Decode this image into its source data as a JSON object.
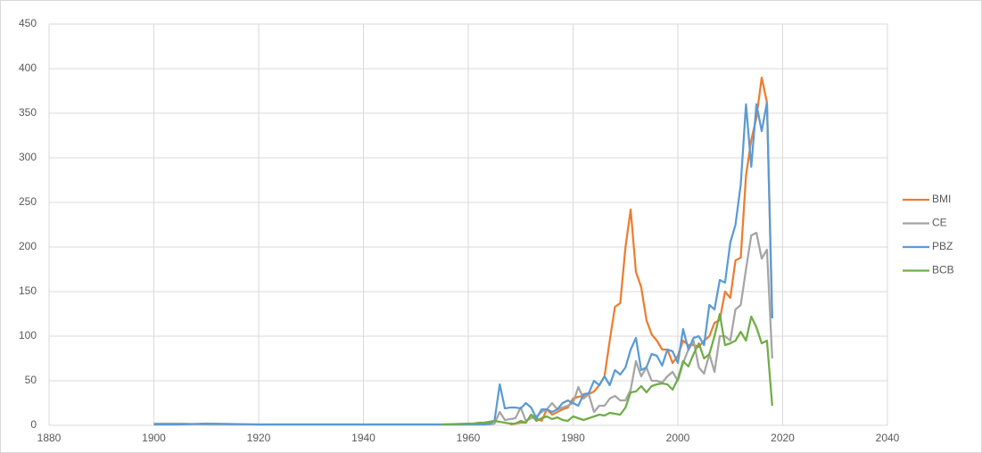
{
  "chart_data": {
    "type": "line",
    "x": [
      1900,
      1905,
      1910,
      1920,
      1930,
      1940,
      1950,
      1955,
      1960,
      1961,
      1962,
      1963,
      1964,
      1965,
      1966,
      1967,
      1968,
      1969,
      1970,
      1971,
      1972,
      1973,
      1974,
      1975,
      1976,
      1977,
      1978,
      1979,
      1980,
      1981,
      1982,
      1983,
      1984,
      1985,
      1986,
      1987,
      1988,
      1989,
      1990,
      1991,
      1992,
      1993,
      1994,
      1995,
      1996,
      1997,
      1998,
      1999,
      2000,
      2001,
      2002,
      2003,
      2004,
      2005,
      2006,
      2007,
      2008,
      2009,
      2010,
      2011,
      2012,
      2013,
      2014,
      2015,
      2016,
      2017,
      2018
    ],
    "series": [
      {
        "name": "BMI",
        "color": "#ed7d31",
        "values": [
          null,
          null,
          null,
          null,
          null,
          null,
          null,
          null,
          null,
          null,
          null,
          null,
          null,
          null,
          null,
          null,
          1,
          2,
          3,
          3,
          12,
          8,
          5,
          18,
          12,
          15,
          18,
          20,
          30,
          32,
          33,
          35,
          38,
          45,
          55,
          95,
          133,
          137,
          200,
          242,
          172,
          155,
          118,
          102,
          95,
          85,
          85,
          70,
          78,
          95,
          90,
          90,
          88,
          95,
          100,
          115,
          118,
          150,
          143,
          185,
          188,
          280,
          320,
          345,
          390,
          362,
          120
        ]
      },
      {
        "name": "CE",
        "color": "#a5a5a5",
        "values": [
          2,
          2,
          1,
          1,
          1,
          1,
          1,
          1,
          1,
          1,
          1,
          1,
          1,
          2,
          15,
          6,
          7,
          8,
          20,
          5,
          8,
          10,
          15,
          18,
          25,
          18,
          20,
          22,
          25,
          43,
          30,
          35,
          15,
          22,
          22,
          30,
          33,
          28,
          28,
          40,
          72,
          55,
          65,
          50,
          50,
          48,
          55,
          60,
          50,
          70,
          85,
          95,
          65,
          58,
          80,
          60,
          100,
          100,
          95,
          130,
          135,
          175,
          213,
          216,
          187,
          197,
          75
        ]
      },
      {
        "name": "PBZ",
        "color": "#5b9bd5",
        "values": [
          1,
          1,
          2,
          1,
          1,
          1,
          1,
          1,
          1,
          1,
          1,
          1,
          2,
          5,
          46,
          19,
          20,
          20,
          19,
          25,
          20,
          8,
          18,
          18,
          15,
          18,
          25,
          28,
          25,
          22,
          35,
          36,
          50,
          45,
          55,
          45,
          62,
          57,
          65,
          85,
          98,
          62,
          65,
          80,
          78,
          67,
          85,
          83,
          70,
          108,
          85,
          98,
          100,
          90,
          135,
          130,
          163,
          160,
          205,
          225,
          270,
          360,
          290,
          360,
          330,
          362,
          120
        ]
      },
      {
        "name": "BCB",
        "color": "#70ad47",
        "values": [
          null,
          null,
          null,
          null,
          null,
          null,
          null,
          1,
          2,
          2,
          3,
          3,
          4,
          5,
          4,
          3,
          2,
          2,
          5,
          3,
          12,
          5,
          8,
          10,
          7,
          9,
          6,
          5,
          10,
          8,
          6,
          8,
          10,
          12,
          11,
          14,
          13,
          12,
          20,
          37,
          38,
          44,
          37,
          44,
          46,
          47,
          46,
          40,
          52,
          72,
          66,
          80,
          92,
          75,
          80,
          100,
          125,
          90,
          92,
          95,
          105,
          95,
          122,
          110,
          92,
          95,
          22
        ]
      }
    ],
    "xlim": [
      1880,
      2040
    ],
    "xticks": [
      1880,
      1900,
      1920,
      1940,
      1960,
      1980,
      2000,
      2020,
      2040
    ],
    "ylim": [
      0,
      450
    ],
    "yticks": [
      0,
      50,
      100,
      150,
      200,
      250,
      300,
      350,
      400,
      450
    ],
    "grid": true,
    "legend": "right"
  }
}
